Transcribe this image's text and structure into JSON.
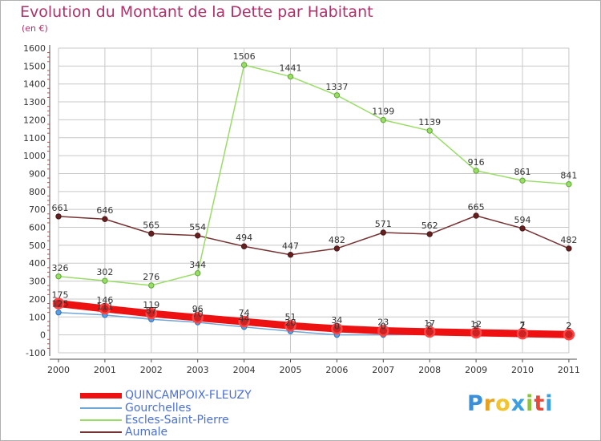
{
  "title": "Evolution du Montant de la Dette par Habitant",
  "unit_label": "(en €)",
  "logo_text": "Proxiti",
  "colors": {
    "grid": "#c8c8c8",
    "axis": "#4d4d4d",
    "title": "#b0306a",
    "legend_text": "#4a6fd8"
  },
  "chart_data": {
    "type": "line",
    "categories": [
      "2000",
      "2001",
      "2002",
      "2003",
      "2004",
      "2005",
      "2006",
      "2007",
      "2008",
      "2009",
      "2010",
      "2011"
    ],
    "ylim": [
      -100,
      1600
    ],
    "yticks": [
      -100,
      0,
      100,
      200,
      300,
      400,
      500,
      600,
      700,
      800,
      900,
      1000,
      1100,
      1200,
      1300,
      1400,
      1500,
      1600
    ],
    "grid": true,
    "legend_position": "bottom-left",
    "series": [
      {
        "name": "QUINCAMPOIX-FLEUZY",
        "color": "#ee1111",
        "values": [
          175,
          146,
          119,
          96,
          74,
          51,
          34,
          23,
          17,
          12,
          7,
          2
        ]
      },
      {
        "name": "Gourchelles",
        "color": "#6fa6d8",
        "values": [
          125,
          111,
          87,
          70,
          44,
          20,
          0,
          0,
          2,
          2,
          2,
          2
        ]
      },
      {
        "name": "Escles-Saint-Pierre",
        "color": "#99dd66",
        "values": [
          326,
          302,
          276,
          344,
          1506,
          1441,
          1337,
          1199,
          1139,
          916,
          861,
          841
        ]
      },
      {
        "name": "Aumale",
        "color": "#773333",
        "values": [
          661,
          646,
          565,
          554,
          494,
          447,
          482,
          571,
          562,
          665,
          594,
          482
        ]
      }
    ]
  }
}
